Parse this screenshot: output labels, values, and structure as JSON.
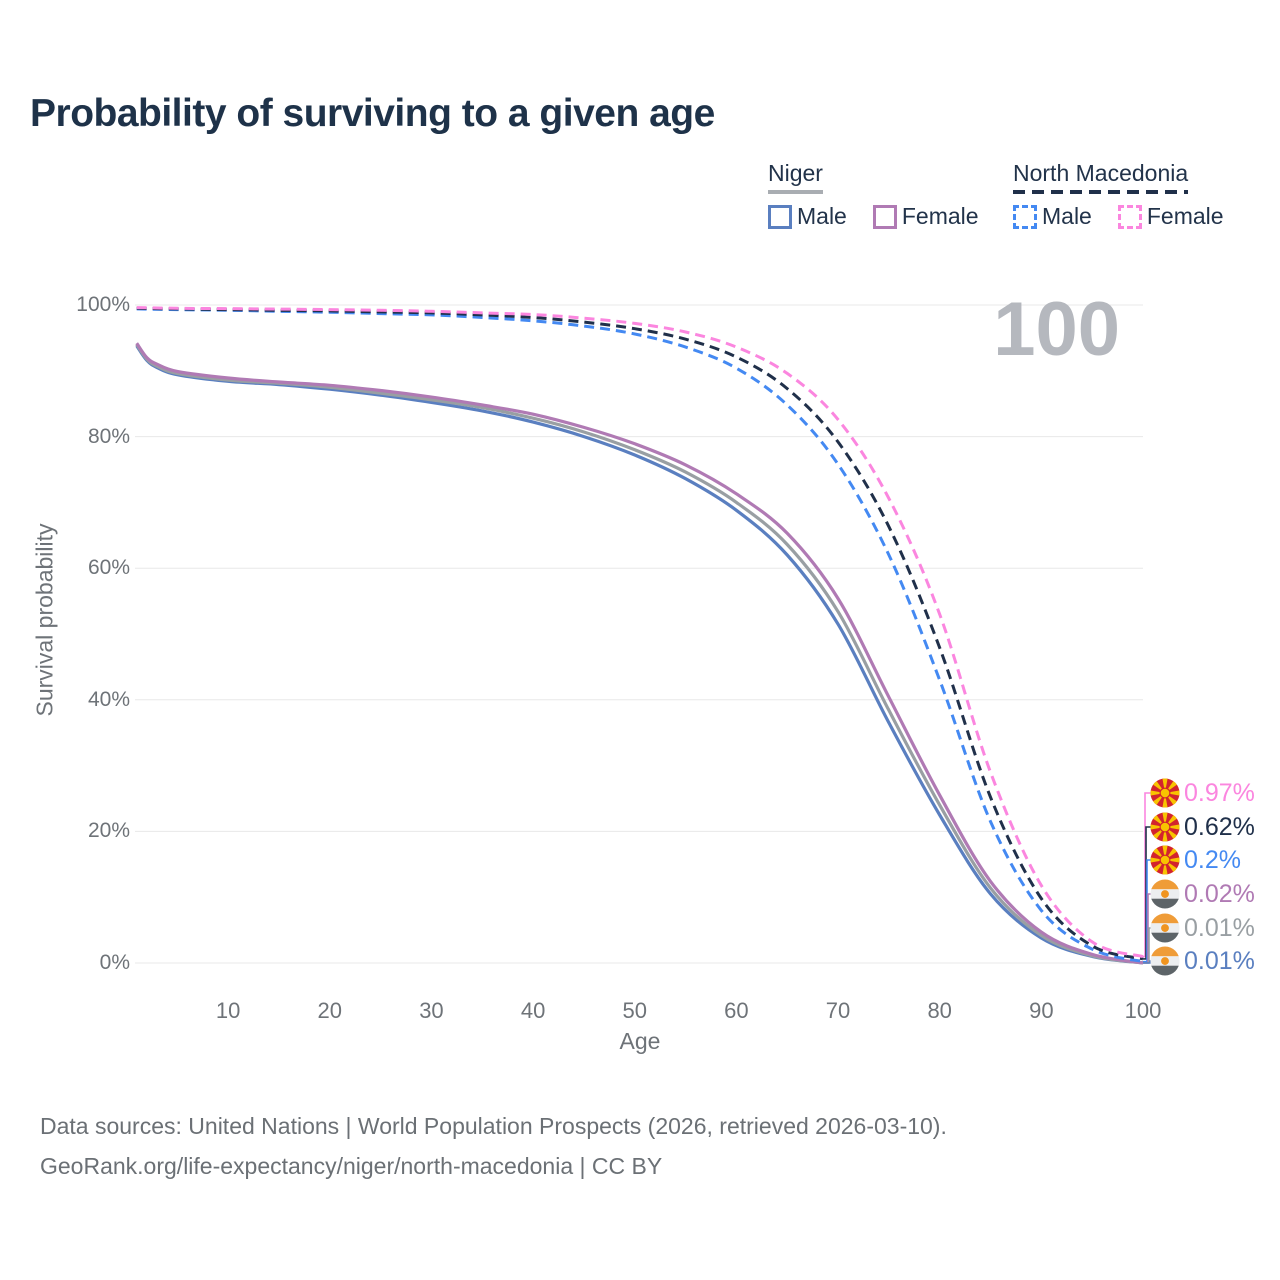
{
  "title": "Probability of surviving to a given age",
  "legend": {
    "groups": [
      {
        "label": "Niger",
        "line_style": "solid",
        "line_color": "#a9adb2",
        "items": [
          {
            "label": "Male",
            "swatch_color": "#5a7fc0",
            "swatch_style": "solid"
          },
          {
            "label": "Female",
            "swatch_color": "#b07ab4",
            "swatch_style": "solid"
          }
        ]
      },
      {
        "label": "North Macedonia",
        "line_style": "dashed",
        "line_color": "#20304a",
        "items": [
          {
            "label": "Male",
            "swatch_color": "#4489f2",
            "swatch_style": "dashed"
          },
          {
            "label": "Female",
            "swatch_color": "#fb86df",
            "swatch_style": "dashed"
          }
        ]
      }
    ]
  },
  "chart_data": {
    "type": "line",
    "title": "Probability of surviving to a given age",
    "xlabel": "Age",
    "ylabel": "Survival probability",
    "xlim": [
      0,
      100
    ],
    "ylim": [
      0,
      100
    ],
    "x_ticks": [
      10,
      20,
      30,
      40,
      50,
      60,
      70,
      80,
      90,
      100
    ],
    "y_tick_labels": [
      "100%",
      "80%",
      "60%",
      "40%",
      "20%",
      "0%"
    ],
    "grid": "horizontal",
    "legend_position": "top-right",
    "watermark": "100",
    "series": [
      {
        "name": "Niger Male",
        "country": "Niger",
        "sex": "Male",
        "style": "solid",
        "color": "#5a7fc0",
        "end_label": "0.01%",
        "points": [
          [
            1,
            93.8
          ],
          [
            2,
            91.6
          ],
          [
            3,
            90.5
          ],
          [
            5,
            89.4
          ],
          [
            10,
            88.4
          ],
          [
            15,
            87.9
          ],
          [
            20,
            87.2
          ],
          [
            25,
            86.3
          ],
          [
            30,
            85.2
          ],
          [
            35,
            83.9
          ],
          [
            40,
            82.2
          ],
          [
            45,
            80.0
          ],
          [
            50,
            77.2
          ],
          [
            55,
            73.6
          ],
          [
            60,
            68.8
          ],
          [
            65,
            62.0
          ],
          [
            70,
            51.5
          ],
          [
            75,
            36.5
          ],
          [
            80,
            22.5
          ],
          [
            85,
            10.5
          ],
          [
            90,
            3.8
          ],
          [
            95,
            1.0
          ],
          [
            100,
            0.01
          ]
        ]
      },
      {
        "name": "Niger Both sexes",
        "country": "Niger",
        "sex": "Both",
        "style": "solid",
        "color": "#999fa3",
        "end_label": "0.01%",
        "points": [
          [
            1,
            94.0
          ],
          [
            2,
            91.8
          ],
          [
            3,
            90.7
          ],
          [
            5,
            89.6
          ],
          [
            10,
            88.6
          ],
          [
            15,
            88.1
          ],
          [
            20,
            87.5
          ],
          [
            25,
            86.6
          ],
          [
            30,
            85.6
          ],
          [
            35,
            84.4
          ],
          [
            40,
            82.8
          ],
          [
            45,
            80.7
          ],
          [
            50,
            78.0
          ],
          [
            55,
            74.6
          ],
          [
            60,
            70.0
          ],
          [
            65,
            63.6
          ],
          [
            70,
            53.4
          ],
          [
            75,
            38.4
          ],
          [
            80,
            24.0
          ],
          [
            85,
            11.4
          ],
          [
            90,
            4.2
          ],
          [
            95,
            1.1
          ],
          [
            100,
            0.01
          ]
        ]
      },
      {
        "name": "Niger Female",
        "country": "Niger",
        "sex": "Female",
        "style": "solid",
        "color": "#b07ab4",
        "end_label": "0.02%",
        "points": [
          [
            1,
            94.2
          ],
          [
            2,
            92.0
          ],
          [
            3,
            91.0
          ],
          [
            5,
            89.9
          ],
          [
            10,
            88.9
          ],
          [
            15,
            88.3
          ],
          [
            20,
            87.8
          ],
          [
            25,
            87.0
          ],
          [
            30,
            86.0
          ],
          [
            35,
            84.8
          ],
          [
            40,
            83.4
          ],
          [
            45,
            81.4
          ],
          [
            50,
            78.9
          ],
          [
            55,
            75.7
          ],
          [
            60,
            71.3
          ],
          [
            65,
            65.3
          ],
          [
            70,
            55.4
          ],
          [
            75,
            40.4
          ],
          [
            80,
            25.5
          ],
          [
            85,
            12.4
          ],
          [
            90,
            4.7
          ],
          [
            95,
            1.3
          ],
          [
            100,
            0.02
          ]
        ]
      },
      {
        "name": "North Macedonia Male",
        "country": "North Macedonia",
        "sex": "Male",
        "style": "dashed",
        "color": "#4489f2",
        "end_label": "0.2%",
        "points": [
          [
            1,
            99.4
          ],
          [
            5,
            99.3
          ],
          [
            10,
            99.2
          ],
          [
            15,
            99.05
          ],
          [
            20,
            98.9
          ],
          [
            25,
            98.7
          ],
          [
            30,
            98.5
          ],
          [
            35,
            98.1
          ],
          [
            40,
            97.6
          ],
          [
            45,
            96.8
          ],
          [
            50,
            95.6
          ],
          [
            55,
            93.6
          ],
          [
            60,
            90.4
          ],
          [
            65,
            84.8
          ],
          [
            70,
            75.8
          ],
          [
            75,
            62.0
          ],
          [
            80,
            43.0
          ],
          [
            85,
            21.5
          ],
          [
            90,
            8.0
          ],
          [
            95,
            2.1
          ],
          [
            100,
            0.2
          ]
        ]
      },
      {
        "name": "North Macedonia Both sexes",
        "country": "North Macedonia",
        "sex": "Both",
        "style": "dashed",
        "color": "#20304a",
        "end_label": "0.62%",
        "points": [
          [
            1,
            99.5
          ],
          [
            5,
            99.4
          ],
          [
            10,
            99.3
          ],
          [
            15,
            99.2
          ],
          [
            20,
            99.1
          ],
          [
            25,
            98.95
          ],
          [
            30,
            98.8
          ],
          [
            35,
            98.5
          ],
          [
            40,
            98.1
          ],
          [
            45,
            97.4
          ],
          [
            50,
            96.4
          ],
          [
            55,
            94.8
          ],
          [
            60,
            92.1
          ],
          [
            65,
            87.3
          ],
          [
            70,
            79.2
          ],
          [
            75,
            66.3
          ],
          [
            80,
            47.9
          ],
          [
            85,
            25.2
          ],
          [
            90,
            9.8
          ],
          [
            95,
            2.6
          ],
          [
            100,
            0.62
          ]
        ]
      },
      {
        "name": "North Macedonia Female",
        "country": "North Macedonia",
        "sex": "Female",
        "style": "dashed",
        "color": "#fb86df",
        "end_label": "0.97%",
        "points": [
          [
            1,
            99.6
          ],
          [
            5,
            99.5
          ],
          [
            10,
            99.45
          ],
          [
            15,
            99.38
          ],
          [
            20,
            99.3
          ],
          [
            25,
            99.2
          ],
          [
            30,
            99.05
          ],
          [
            35,
            98.8
          ],
          [
            40,
            98.55
          ],
          [
            45,
            98.0
          ],
          [
            50,
            97.2
          ],
          [
            55,
            95.9
          ],
          [
            60,
            93.6
          ],
          [
            65,
            89.6
          ],
          [
            70,
            82.6
          ],
          [
            75,
            70.6
          ],
          [
            80,
            53.0
          ],
          [
            85,
            29.0
          ],
          [
            90,
            11.8
          ],
          [
            95,
            3.2
          ],
          [
            100,
            0.97
          ]
        ]
      }
    ],
    "end_labels": [
      {
        "label": "0.97%",
        "series_index": 5,
        "icon": "north-macedonia-flag-icon"
      },
      {
        "label": "0.62%",
        "series_index": 4,
        "icon": "north-macedonia-flag-icon"
      },
      {
        "label": "0.2%",
        "series_index": 3,
        "icon": "north-macedonia-flag-icon"
      },
      {
        "label": "0.02%",
        "series_index": 2,
        "icon": "niger-flag-icon"
      },
      {
        "label": "0.01%",
        "series_index": 1,
        "icon": "niger-flag-icon"
      },
      {
        "label": "0.01%",
        "series_index": 0,
        "icon": "niger-flag-icon"
      }
    ]
  },
  "footer": {
    "line1": "Data sources: United Nations | World Population Prospects (2026, retrieved 2026-03-10).",
    "line2": "GeoRank.org/life-expectancy/niger/north-macedonia | CC BY"
  },
  "colors": {
    "title": "#1e3249",
    "axis_text": "#6e7378",
    "grid": "#e8e8e8",
    "watermark": "#b5b8be",
    "footer_text": "#6b7075",
    "nm_flag_red": "#d2232e",
    "nm_flag_yellow": "#f8c300",
    "niger_flag_orange": "#ef9c38",
    "niger_flag_white": "#eceef0",
    "niger_flag_bottom": "#5d6468"
  }
}
